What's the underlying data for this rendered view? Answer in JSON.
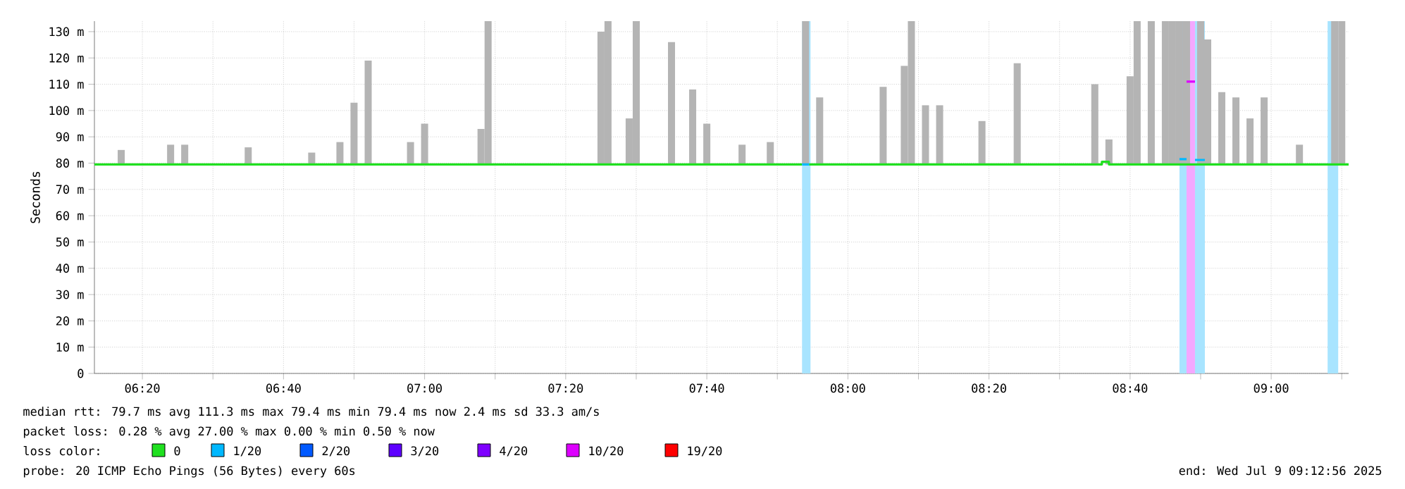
{
  "chart_data": {
    "type": "line",
    "ylabel": "Seconds",
    "xlim": [
      6.22,
      9.183
    ],
    "ylim": [
      0,
      134
    ],
    "xticks": [
      {
        "value": 6.3333,
        "label": "06:20"
      },
      {
        "value": 6.5,
        "label": null
      },
      {
        "value": 6.6667,
        "label": "06:40"
      },
      {
        "value": 6.8333,
        "label": null
      },
      {
        "value": 7.0,
        "label": "07:00"
      },
      {
        "value": 7.1667,
        "label": null
      },
      {
        "value": 7.3333,
        "label": "07:20"
      },
      {
        "value": 7.5,
        "label": null
      },
      {
        "value": 7.6667,
        "label": "07:40"
      },
      {
        "value": 7.8333,
        "label": null
      },
      {
        "value": 8.0,
        "label": "08:00"
      },
      {
        "value": 8.1667,
        "label": null
      },
      {
        "value": 8.3333,
        "label": "08:20"
      },
      {
        "value": 8.5,
        "label": null
      },
      {
        "value": 8.6667,
        "label": "08:40"
      },
      {
        "value": 8.8333,
        "label": null
      },
      {
        "value": 9.0,
        "label": "09:00"
      },
      {
        "value": 9.1667,
        "label": null
      }
    ],
    "yticks": [
      0,
      {
        "value": 10,
        "label": "10 m"
      },
      {
        "value": 20,
        "label": "20 m"
      },
      {
        "value": 30,
        "label": "30 m"
      },
      {
        "value": 40,
        "label": "40 m"
      },
      {
        "value": 50,
        "label": "50 m"
      },
      {
        "value": 60,
        "label": "60 m"
      },
      {
        "value": 70,
        "label": "70 m"
      },
      {
        "value": 80,
        "label": "80 m"
      },
      {
        "value": 90,
        "label": "90 m"
      },
      {
        "value": 100,
        "label": "100 m"
      },
      {
        "value": 110,
        "label": "110 m"
      },
      {
        "value": 120,
        "label": "120 m"
      },
      {
        "value": 130,
        "label": "130 m"
      }
    ],
    "grid": true,
    "legend": "bottom",
    "bands": [
      {
        "axis": "x",
        "from": 7.8917,
        "to": 7.9117,
        "color": "#a8e4ff"
      },
      {
        "axis": "x",
        "from": 8.7833,
        "to": 8.8,
        "color": "#a8e4ff"
      },
      {
        "axis": "x",
        "from": 8.8,
        "to": 8.82,
        "color": "#f4a8ff"
      },
      {
        "axis": "x",
        "from": 8.82,
        "to": 8.8433,
        "color": "#a8e4ff"
      },
      {
        "axis": "x",
        "from": 9.1333,
        "to": 9.1583,
        "color": "#a8e4ff"
      }
    ],
    "series": [
      {
        "type": "bar",
        "color": "#b4b4b4",
        "x": [
          6.2833,
          6.4,
          6.4333,
          6.5833,
          6.7333,
          6.8,
          6.8333,
          6.8667,
          6.9667,
          7.0,
          7.1333,
          7.15,
          7.4167,
          7.4333,
          7.4833,
          7.5,
          7.5833,
          7.6333,
          7.6667,
          7.75,
          7.8167,
          7.9,
          7.9333,
          8.0833,
          8.1333,
          8.15,
          8.1833,
          8.2167,
          8.3167,
          8.4,
          8.5833,
          8.6167,
          8.6667,
          8.6833,
          8.7167,
          8.75,
          8.7667,
          8.7833,
          8.8,
          8.8333,
          8.85,
          8.8833,
          8.9167,
          8.95,
          8.9833,
          9.0667,
          9.15,
          9.1667
        ],
        "base": [
          79.5,
          79.5,
          79.5,
          79.5,
          79.5,
          79.5,
          79.5,
          79.5,
          79.5,
          79.5,
          79.5,
          79.5,
          79.5,
          79.5,
          79.5,
          79.5,
          79.5,
          79.5,
          79.5,
          79.5,
          79.5,
          79.5,
          79.5,
          79.5,
          79.5,
          79.5,
          79.5,
          79.5,
          79.5,
          79.5,
          79.5,
          79.5,
          79.5,
          79.5,
          79.5,
          79.5,
          79.5,
          79.5,
          79.5,
          79.5,
          79.5,
          79.5,
          79.5,
          79.5,
          79.5,
          79.5,
          79.5,
          79.5
        ],
        "values": [
          5.5,
          7.5,
          7.5,
          6.5,
          4.5,
          8.5,
          23.5,
          39.5,
          8.5,
          15.5,
          13.5,
          54.5,
          50.5,
          54.5,
          17.5,
          54.5,
          46.5,
          28.5,
          15.5,
          7.5,
          8.5,
          54.5,
          25.5,
          29.5,
          37.5,
          54.5,
          22.5,
          22.5,
          16.5,
          38.5,
          30.5,
          9.5,
          33.5,
          54.5,
          54.5,
          54.5,
          54.5,
          54.5,
          54.5,
          54.5,
          47.5,
          27.5,
          25.5,
          17.5,
          25.5,
          7.5,
          54.5,
          54.5
        ]
      },
      {
        "name": "0",
        "color": "#20e020",
        "x": [
          6.22,
          7.8917,
          7.895,
          7.9083,
          8.5833,
          8.6,
          8.6167,
          9.183
        ],
        "values": [
          79.5,
          79.5,
          null,
          79.5,
          79.5,
          80.5,
          79.5,
          79.5
        ]
      },
      {
        "name": "1/20",
        "color": "#00b8ff",
        "x": [
          7.8917,
          7.9083,
          7.91,
          8.7833,
          8.8,
          8.8017,
          8.82,
          8.8433
        ],
        "values": [
          79.5,
          79.5,
          null,
          81.5,
          81.5,
          null,
          81.2,
          81.2
        ]
      },
      {
        "name": "2/20",
        "color": "#0059ff"
      },
      {
        "name": "3/20",
        "color": "#5e00ff"
      },
      {
        "name": "4/20",
        "color": "#7e00ff"
      },
      {
        "name": "10/20",
        "color": "#dd00ff",
        "x": [
          8.8,
          8.82
        ],
        "values": [
          111,
          111
        ]
      },
      {
        "name": "19/20",
        "color": "#ff0000"
      }
    ],
    "annotations": [
      "median rtt:  79.7 ms avg  111.3 ms max  79.4 ms min  79.4 ms now  2.4 ms sd  33.3   am/s",
      "packet loss: 0.28 % avg  27.00 % max  0.00 % min  0.50 % now",
      "loss color:",
      "probe:       20 ICMP Echo Pings (56 Bytes) every 60s",
      "end: Wed Jul  9 09:12:56 2025"
    ]
  }
}
